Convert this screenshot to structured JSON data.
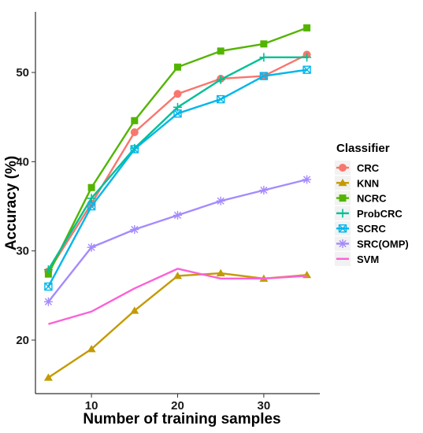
{
  "chart_data": {
    "type": "line",
    "xlabel": "Number of training samples",
    "ylabel": "Accuracy (%)",
    "xlim": [
      3.5,
      36.5
    ],
    "ylim": [
      14.0,
      56.8
    ],
    "xticks": [
      10,
      20,
      30
    ],
    "yticks": [
      20,
      30,
      40,
      50
    ],
    "grid": false,
    "legend": {
      "title": "Classifier",
      "placement": "right"
    },
    "x": [
      5,
      10,
      15,
      20,
      25,
      30,
      35
    ],
    "series": [
      {
        "name": "CRC",
        "color": "#F8766D",
        "marker": "circle",
        "values": [
          27.7,
          35.3,
          43.3,
          47.6,
          49.3,
          49.6,
          52.0
        ]
      },
      {
        "name": "KNN",
        "color": "#C49A00",
        "marker": "triangle",
        "values": [
          15.8,
          19.0,
          23.3,
          27.2,
          27.5,
          26.9,
          27.3
        ]
      },
      {
        "name": "NCRC",
        "color": "#53B400",
        "marker": "square",
        "values": [
          27.4,
          37.1,
          44.6,
          50.6,
          52.4,
          53.2,
          55.0
        ]
      },
      {
        "name": "ProbCRC",
        "color": "#00C094",
        "marker": "plus",
        "values": [
          27.9,
          35.9,
          41.5,
          46.1,
          49.2,
          51.7,
          51.7
        ]
      },
      {
        "name": "SCRC",
        "color": "#00B6EB",
        "marker": "square-x",
        "values": [
          26.0,
          35.0,
          41.4,
          45.4,
          47.0,
          49.6,
          50.3
        ]
      },
      {
        "name": "SRC(OMP)",
        "color": "#A58AFF",
        "marker": "asterisk",
        "values": [
          24.3,
          30.4,
          32.4,
          34.0,
          35.6,
          36.8,
          38.0
        ]
      },
      {
        "name": "SVM",
        "color": "#FB61D7",
        "marker": "none",
        "values": [
          21.8,
          23.2,
          25.8,
          28.0,
          26.9,
          26.9,
          27.2
        ]
      }
    ]
  }
}
